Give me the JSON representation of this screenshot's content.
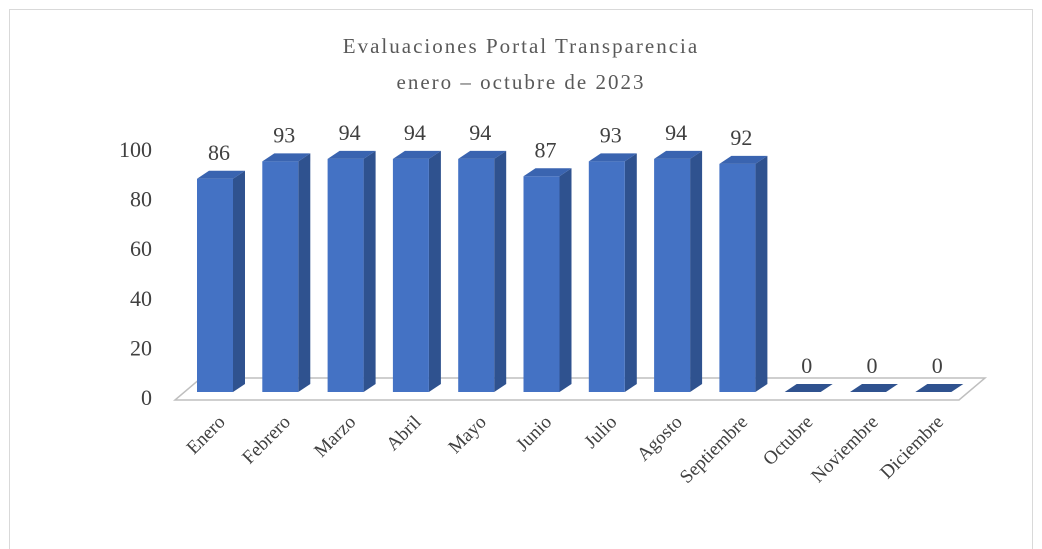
{
  "chart_data": {
    "type": "bar3d",
    "title": "Evaluaciones Portal Transparencia",
    "subtitle": "enero – octubre de 2023",
    "categories": [
      "Enero",
      "Febrero",
      "Marzo",
      "Abril",
      "Mayo",
      "Junio",
      "Julio",
      "Agosto",
      "Septiembre",
      "Octubre",
      "Noviembre",
      "Diciembre"
    ],
    "values": [
      86,
      93,
      94,
      94,
      94,
      87,
      93,
      94,
      92,
      0,
      0,
      0
    ],
    "color": "#4472c4",
    "ylim": [
      0,
      100
    ],
    "yticks": [
      0,
      20,
      40,
      60,
      80,
      100
    ],
    "grid": false
  }
}
